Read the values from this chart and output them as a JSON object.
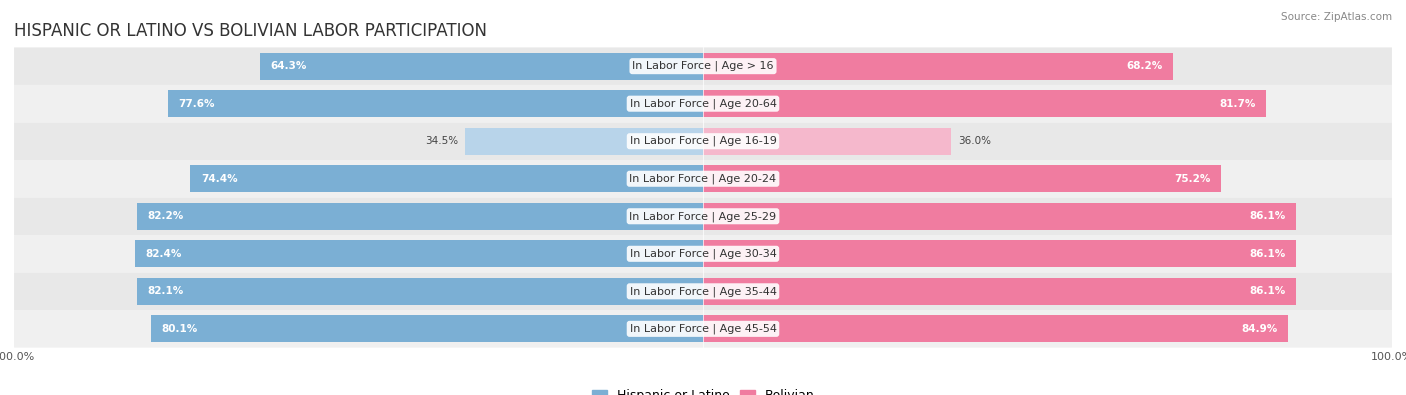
{
  "title": "HISPANIC OR LATINO VS BOLIVIAN LABOR PARTICIPATION",
  "source": "Source: ZipAtlas.com",
  "categories": [
    "In Labor Force | Age > 16",
    "In Labor Force | Age 20-64",
    "In Labor Force | Age 16-19",
    "In Labor Force | Age 20-24",
    "In Labor Force | Age 25-29",
    "In Labor Force | Age 30-34",
    "In Labor Force | Age 35-44",
    "In Labor Force | Age 45-54"
  ],
  "hispanic_values": [
    64.3,
    77.6,
    34.5,
    74.4,
    82.2,
    82.4,
    82.1,
    80.1
  ],
  "bolivian_values": [
    68.2,
    81.7,
    36.0,
    75.2,
    86.1,
    86.1,
    86.1,
    84.9
  ],
  "hispanic_color": "#7bafd4",
  "hispanic_color_light": "#b8d4ea",
  "bolivian_color": "#f07ca0",
  "bolivian_color_light": "#f5b8cc",
  "bar_height": 0.72,
  "xlim": 100.0,
  "background_color": "#ffffff",
  "row_color_dark": "#e8e8e8",
  "row_color_light": "#f0f0f0",
  "title_fontsize": 12,
  "label_fontsize": 8,
  "value_fontsize": 7.5,
  "legend_fontsize": 9,
  "axis_label_fontsize": 8,
  "light_threshold": 50
}
